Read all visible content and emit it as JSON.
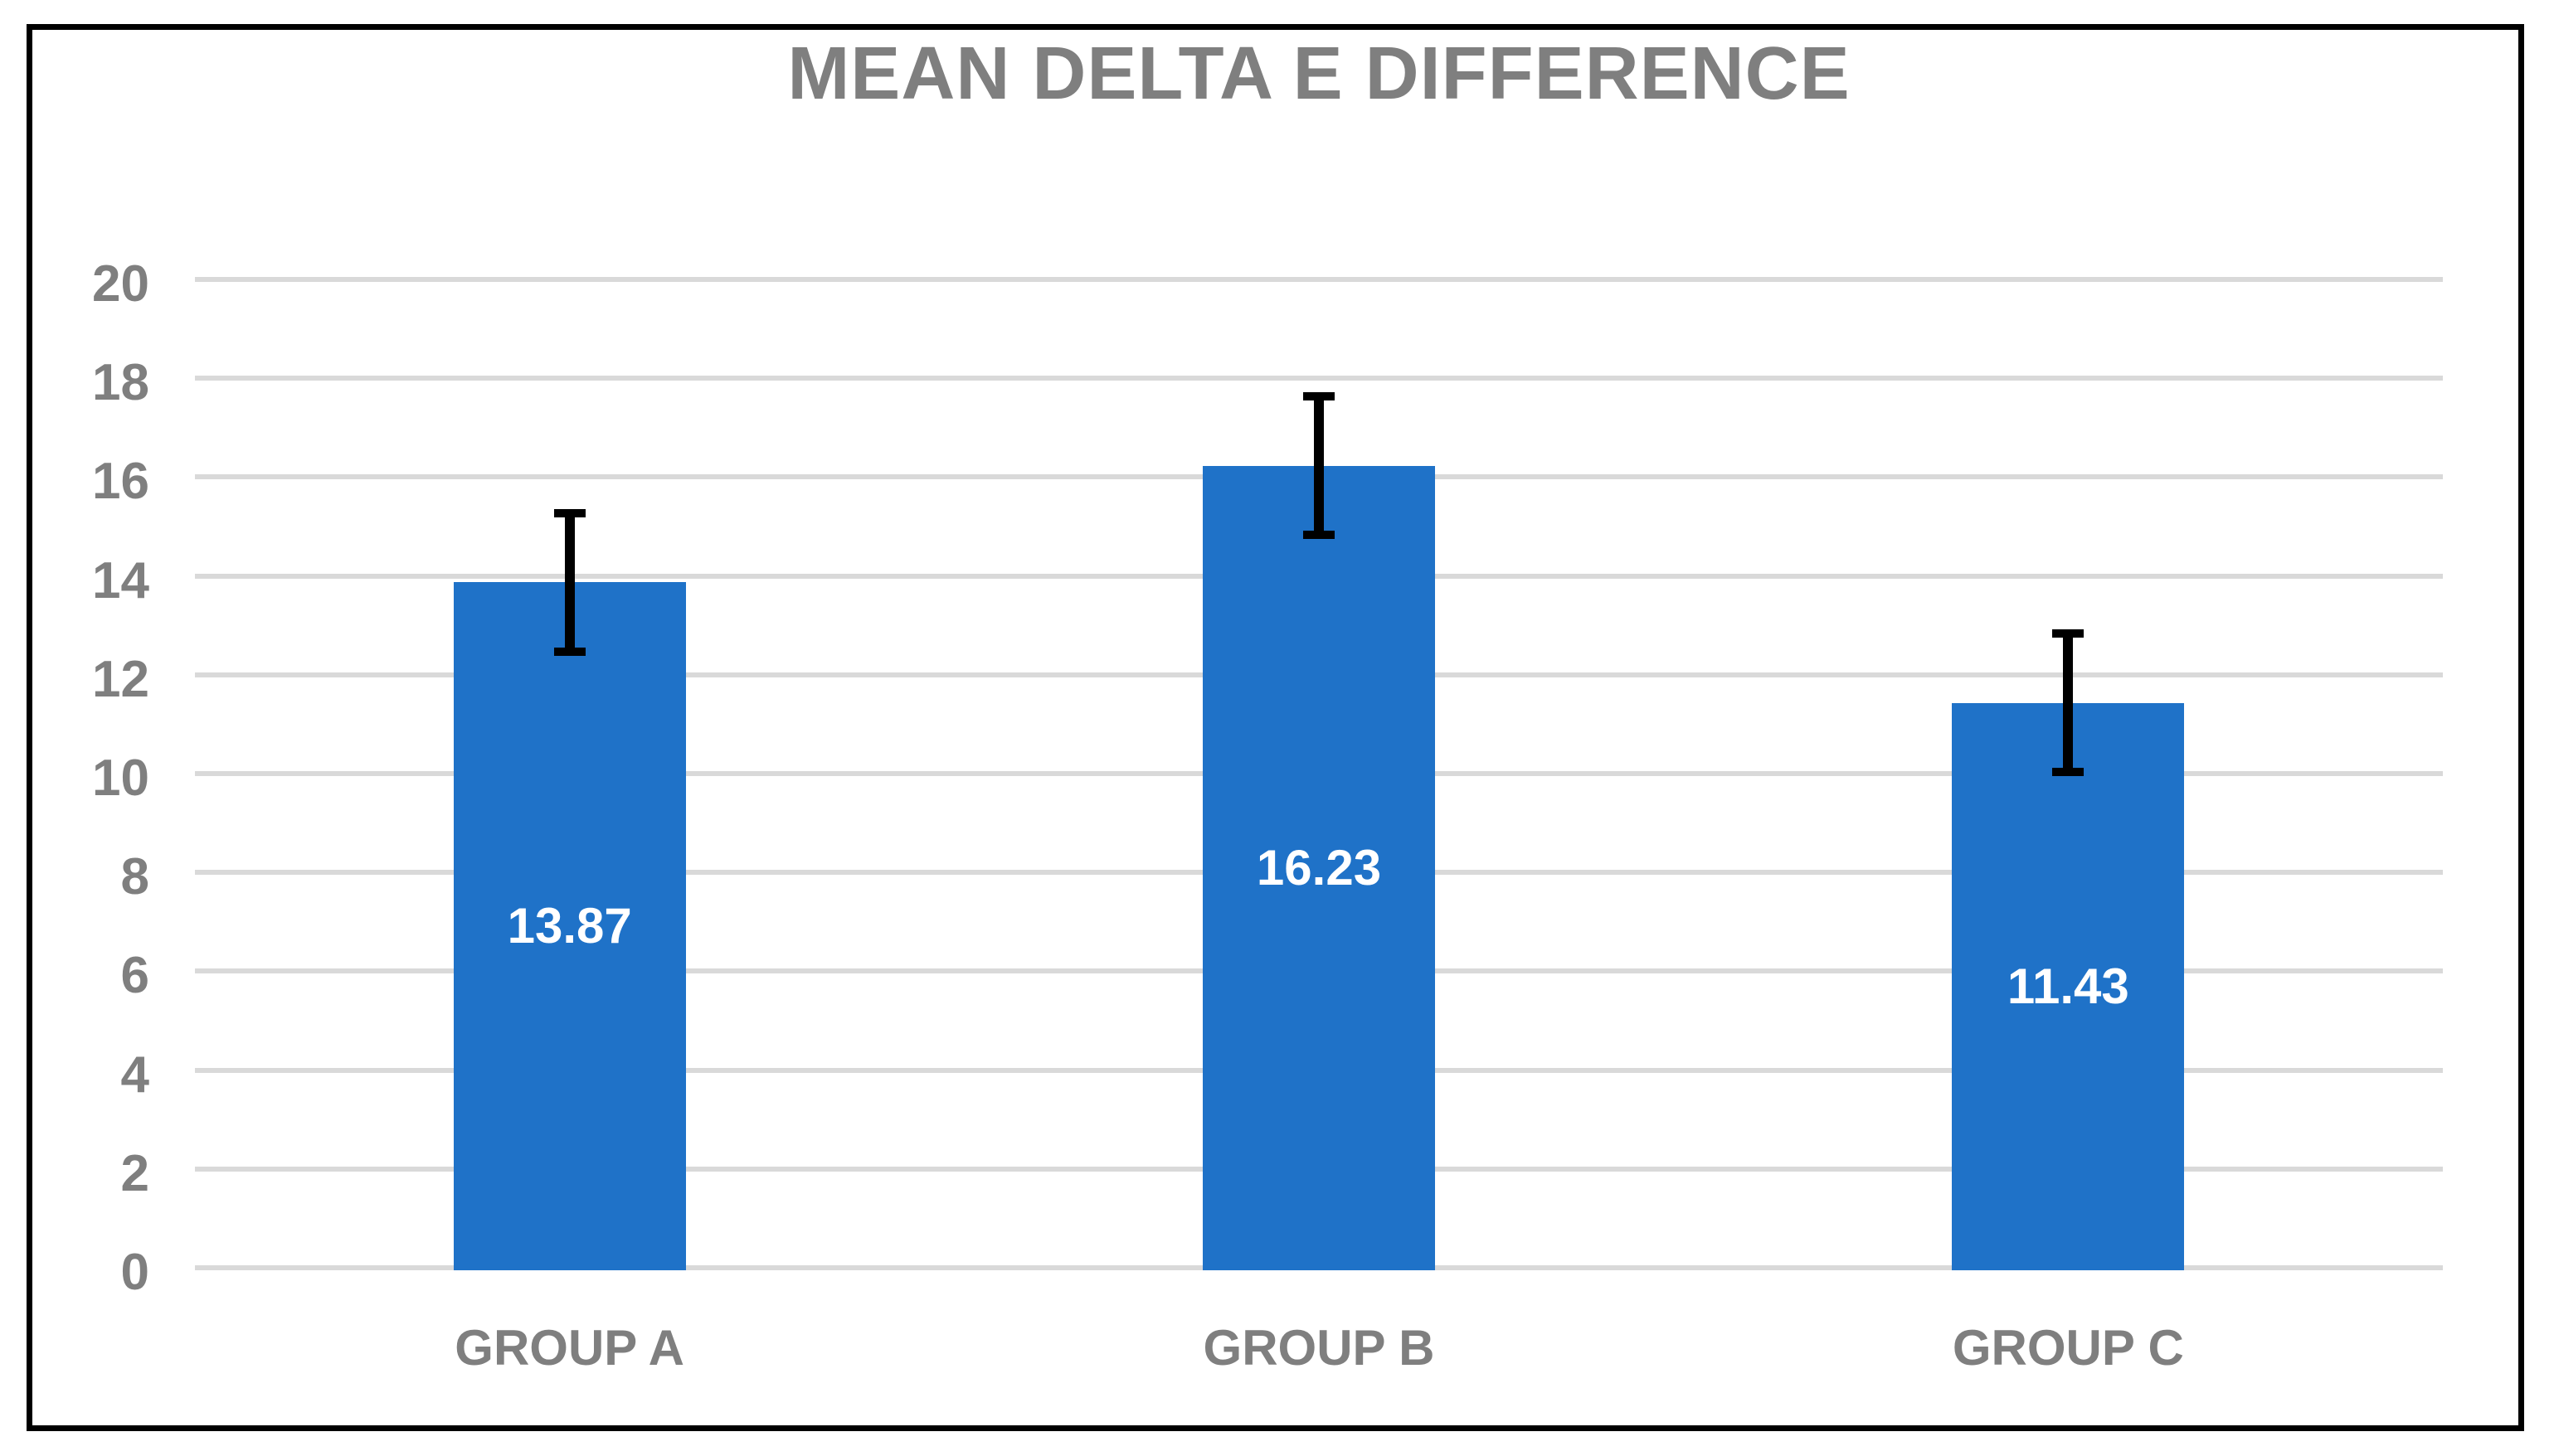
{
  "title": "MEAN DELTA E DIFFERENCE",
  "chart_data": {
    "type": "bar",
    "title": "MEAN DELTA E DIFFERENCE",
    "categories": [
      "GROUP A",
      "GROUP B",
      "GROUP C"
    ],
    "values": [
      13.87,
      16.23,
      11.43
    ],
    "value_labels": [
      "13.87",
      "16.23",
      "11.43"
    ],
    "error_bars": {
      "plus": [
        1.4,
        1.4,
        1.4
      ],
      "minus": [
        1.4,
        1.4,
        1.4
      ]
    },
    "xlabel": "",
    "ylabel": "",
    "ylim": [
      0,
      20
    ],
    "yticks": [
      0,
      2,
      4,
      6,
      8,
      10,
      12,
      14,
      16,
      18,
      20
    ],
    "ytick_labels": [
      "0",
      "2",
      "4",
      "6",
      "8",
      "10",
      "12",
      "14",
      "16",
      "18",
      "20"
    ],
    "grid": true,
    "legend": false,
    "colors": {
      "bar": "#1F72C8",
      "value_label": "#FFFFFF",
      "title": "#7F7F7F",
      "axis_label": "#7F7F7F",
      "gridline": "#D9D9D9",
      "error_bar": "#000000",
      "frame_border": "#000000",
      "background": "#FFFFFF"
    }
  }
}
